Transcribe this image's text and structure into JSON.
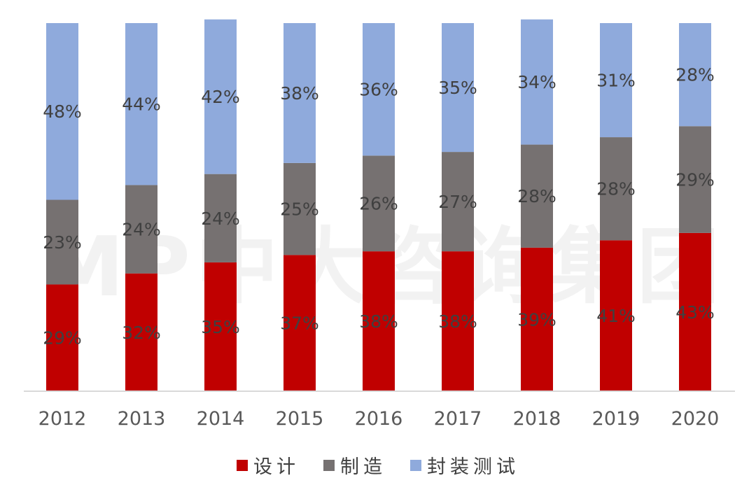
{
  "watermark": "MP中大咨询集团",
  "colors": {
    "design": "#c00000",
    "manufacturing": "#767171",
    "packaging": "#8faadc",
    "axis": "#d9d9d9"
  },
  "legend": [
    {
      "name": "设计",
      "color": "#c00000"
    },
    {
      "name": "制造",
      "color": "#767171"
    },
    {
      "name": "封装测试",
      "color": "#8faadc"
    }
  ],
  "chart_data": {
    "type": "bar",
    "stacked": true,
    "title": "",
    "xlabel": "",
    "ylabel": "",
    "ylim": [
      0,
      100
    ],
    "categories": [
      "2012",
      "2013",
      "2014",
      "2015",
      "2016",
      "2017",
      "2018",
      "2019",
      "2020"
    ],
    "series": [
      {
        "name": "设计",
        "values": [
          29,
          32,
          35,
          37,
          38,
          38,
          39,
          41,
          43
        ],
        "labels": [
          "29%",
          "32%",
          "35%",
          "37%",
          "38%",
          "38%",
          "39%",
          "41%",
          "43%"
        ]
      },
      {
        "name": "制造",
        "values": [
          23,
          24,
          24,
          25,
          26,
          27,
          28,
          28,
          29
        ],
        "labels": [
          "23%",
          "24%",
          "24%",
          "25%",
          "26%",
          "27%",
          "28%",
          "28%",
          "29%"
        ]
      },
      {
        "name": "封装测试",
        "values": [
          48,
          44,
          42,
          38,
          36,
          35,
          34,
          31,
          28
        ],
        "labels": [
          "48%",
          "44%",
          "42%",
          "38%",
          "36%",
          "35%",
          "34%",
          "31%",
          "28%"
        ]
      }
    ],
    "grid": false,
    "legend_position": "bottom"
  }
}
